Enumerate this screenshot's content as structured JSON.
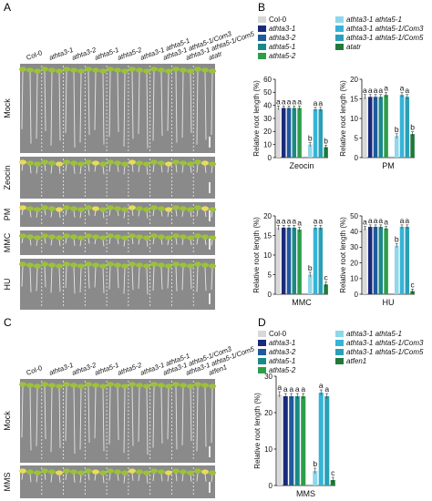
{
  "panels": {
    "A": {
      "label": "A",
      "genotypes": [
        "Col-0",
        "athta3-1",
        "athta3-2",
        "athta5-1",
        "athta5-2",
        "athta3-1 athta5-1",
        "athta3-1 athta5-1/Com3",
        "athta3-1 athta5-1/Com5",
        "atatr"
      ],
      "rows": [
        "Mock",
        "Zeocin",
        "PM",
        "MMC",
        "HU"
      ]
    },
    "B": {
      "label": "B",
      "legend": [
        "Col-0",
        "athta3-1",
        "athta3-2",
        "athta5-1",
        "athta5-2",
        "athta3-1 athta5-1",
        "athta3-1 athta5-1/Com3",
        "athta3-1 athta5-1/Com5",
        "atatr"
      ]
    },
    "C": {
      "label": "C",
      "genotypes": [
        "Col-0",
        "athta3-1",
        "athta3-2",
        "athta5-1",
        "athta5-2",
        "athta3-1 athta5-1",
        "athta3-1 athta5-1/Com3",
        "athta3-1 athta5-1/Com5",
        "atfen1"
      ],
      "rows": [
        "Mock",
        "MMS"
      ]
    },
    "D": {
      "label": "D",
      "legend": [
        "Col-0",
        "athta3-1",
        "athta3-2",
        "athta5-1",
        "athta5-2",
        "athta3-1 athta5-1",
        "athta3-1 athta5-1/Com3",
        "athta3-1 athta5-1/Com5",
        "atfen1"
      ]
    }
  },
  "colors": [
    "#d8d8d8",
    "#1a2a7a",
    "#1f5a9c",
    "#1a8a86",
    "#2e9d4a",
    "#8fd8ea",
    "#36b4d8",
    "#2aa0b8",
    "#1f7a3a"
  ],
  "chart_data": [
    {
      "type": "bar",
      "xlabel": "Zeocin",
      "ylabel": "Relative root length (%)",
      "ylim": [
        0,
        60
      ],
      "yticks": [
        0,
        10,
        20,
        30,
        40,
        50,
        60
      ],
      "categories": [
        "Col-0",
        "athta3-1",
        "athta3-2",
        "athta5-1",
        "athta5-2",
        "athta3-1 athta5-1",
        "athta3-1 athta5-1/Com3",
        "athta3-1 athta5-1/Com5",
        "atatr"
      ],
      "values": [
        38,
        38,
        38,
        38,
        38,
        10,
        37,
        37,
        8
      ],
      "letters": [
        "a",
        "a",
        "a",
        "a",
        "a",
        "b",
        "a",
        "a",
        "b"
      ]
    },
    {
      "type": "bar",
      "xlabel": "PM",
      "ylabel": "Relative root length (%)",
      "ylim": [
        0,
        20
      ],
      "yticks": [
        0,
        5,
        10,
        15,
        20
      ],
      "categories": [
        "Col-0",
        "athta3-1",
        "athta3-2",
        "athta5-1",
        "athta5-2",
        "athta3-1 athta5-1",
        "athta3-1 athta5-1/Com3",
        "athta3-1 athta5-1/Com5",
        "atatr"
      ],
      "values": [
        15.5,
        15.5,
        15.5,
        15.5,
        16,
        5.5,
        16,
        15.5,
        6
      ],
      "letters": [
        "a",
        "a",
        "a",
        "a",
        "a",
        "b",
        "a",
        "a",
        "b"
      ]
    },
    {
      "type": "bar",
      "xlabel": "MMC",
      "ylabel": "Relative root length (%)",
      "ylim": [
        0,
        20
      ],
      "yticks": [
        0,
        5,
        10,
        15,
        20
      ],
      "categories": [
        "Col-0",
        "athta3-1",
        "athta3-2",
        "athta5-1",
        "athta5-2",
        "athta3-1 athta5-1",
        "athta3-1 athta5-1/Com3",
        "athta3-1 athta5-1/Com5",
        "atatr"
      ],
      "values": [
        17,
        17,
        17,
        17,
        16.5,
        5,
        17,
        17,
        2.5
      ],
      "letters": [
        "a",
        "a",
        "a",
        "a",
        "a",
        "b",
        "a",
        "a",
        "c"
      ]
    },
    {
      "type": "bar",
      "xlabel": "HU",
      "ylabel": "Relative root length (%)",
      "ylim": [
        0,
        50
      ],
      "yticks": [
        0,
        10,
        20,
        30,
        40,
        50
      ],
      "categories": [
        "Col-0",
        "athta3-1",
        "athta3-2",
        "athta5-1",
        "athta5-2",
        "athta3-1 athta5-1",
        "athta3-1 athta5-1/Com3",
        "athta3-1 athta5-1/Com5",
        "atatr"
      ],
      "values": [
        42,
        43,
        43,
        43,
        42,
        31,
        43,
        43,
        2
      ],
      "letters": [
        "a",
        "a",
        "a",
        "a",
        "a",
        "b",
        "a",
        "a",
        "c"
      ]
    },
    {
      "type": "bar",
      "xlabel": "MMS",
      "ylabel": "Relative root length (%)",
      "ylim": [
        0,
        30
      ],
      "yticks": [
        0,
        10,
        20,
        30
      ],
      "categories": [
        "Col-0",
        "athta3-1",
        "athta3-2",
        "athta5-1",
        "athta5-2",
        "athta3-1 athta5-1",
        "athta3-1 athta5-1/Com3",
        "athta3-1 athta5-1/Com5",
        "atfen1"
      ],
      "values": [
        25,
        24.5,
        24.5,
        24.5,
        24.5,
        4,
        25.5,
        24.5,
        1.5
      ],
      "letters": [
        "a",
        "a",
        "a",
        "a",
        "a",
        "b",
        "a",
        "a",
        "c"
      ]
    }
  ]
}
